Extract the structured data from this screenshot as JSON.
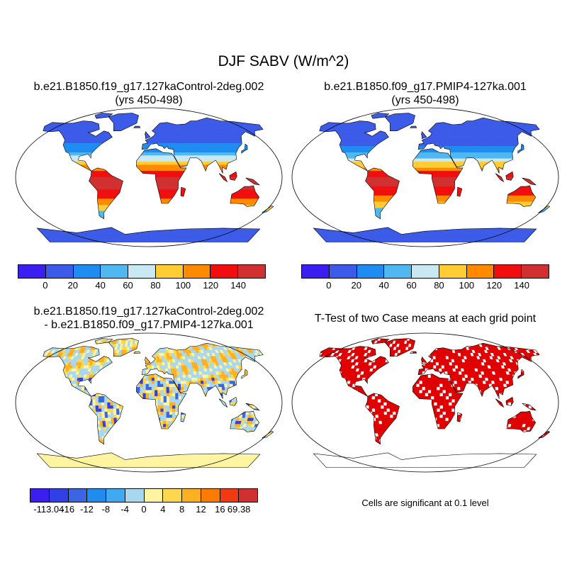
{
  "main_title": "DJF SABV (W/m^2)",
  "panels": [
    {
      "id": "control",
      "title_line1": "b.e21.B1850.f19_g17.127kaControl-2deg.002",
      "title_line2": "(yrs 450-498)"
    },
    {
      "id": "pmip4",
      "title_line1": "b.e21.B1850.f09_g17.PMIP4-127ka.001",
      "title_line2": "(yrs 450-498)"
    },
    {
      "id": "difference",
      "title_line1": "b.e21.B1850.f19_g17.127kaControl-2deg.002",
      "title_line2": "- b.e21.B1850.f09_g17.PMIP4-127ka.001"
    },
    {
      "id": "ttest",
      "title_line1": "T-Test of two Case means at each grid point",
      "title_line2": ""
    }
  ],
  "legend_main": {
    "colors": [
      "#3a1ff0",
      "#3b5be8",
      "#1e8cf0",
      "#4fb8f0",
      "#c8e8f4",
      "#ffcc33",
      "#ff8a00",
      "#f20e0e",
      "#d03030"
    ],
    "ticks": [
      "0",
      "20",
      "40",
      "60",
      "80",
      "100",
      "120",
      "140"
    ]
  },
  "legend_diff": {
    "colors": [
      "#3a1ff0",
      "#3140e6",
      "#3b66e2",
      "#1e8cf0",
      "#3fa9f2",
      "#a8d8f0",
      "#fff4a0",
      "#ffd84d",
      "#ffb020",
      "#ff7a00",
      "#f03a10",
      "#d03030"
    ],
    "ticks": [
      "-113.04",
      "-16",
      "-12",
      "-8",
      "-4",
      "0",
      "4",
      "8",
      "12",
      "16",
      "69.38"
    ]
  },
  "significance_note": "Cells are significant at 0.1 level",
  "colors": {
    "ocean": "#ffffff",
    "coast": "#000000",
    "significant": "#e00000"
  }
}
